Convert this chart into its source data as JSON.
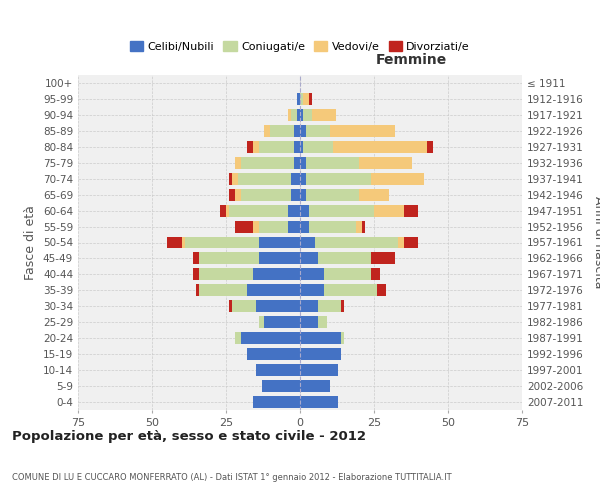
{
  "age_groups": [
    "100+",
    "95-99",
    "90-94",
    "85-89",
    "80-84",
    "75-79",
    "70-74",
    "65-69",
    "60-64",
    "55-59",
    "50-54",
    "45-49",
    "40-44",
    "35-39",
    "30-34",
    "25-29",
    "20-24",
    "15-19",
    "10-14",
    "5-9",
    "0-4"
  ],
  "birth_years": [
    "≤ 1911",
    "1912-1916",
    "1917-1921",
    "1922-1926",
    "1927-1931",
    "1932-1936",
    "1937-1941",
    "1942-1946",
    "1947-1951",
    "1952-1956",
    "1957-1961",
    "1962-1966",
    "1967-1971",
    "1972-1976",
    "1977-1981",
    "1982-1986",
    "1987-1991",
    "1992-1996",
    "1997-2001",
    "2002-2006",
    "2007-2011"
  ],
  "male": {
    "celibi": [
      0,
      1,
      1,
      2,
      2,
      2,
      3,
      3,
      4,
      4,
      14,
      14,
      16,
      18,
      15,
      12,
      20,
      18,
      15,
      13,
      16
    ],
    "coniugati": [
      0,
      0,
      2,
      8,
      12,
      18,
      18,
      17,
      20,
      10,
      25,
      20,
      18,
      16,
      8,
      2,
      2,
      0,
      0,
      0,
      0
    ],
    "vedovi": [
      0,
      0,
      1,
      2,
      2,
      2,
      2,
      2,
      1,
      2,
      1,
      0,
      0,
      0,
      0,
      0,
      0,
      0,
      0,
      0,
      0
    ],
    "divorziati": [
      0,
      0,
      0,
      0,
      2,
      0,
      1,
      2,
      2,
      6,
      5,
      2,
      2,
      1,
      1,
      0,
      0,
      0,
      0,
      0,
      0
    ]
  },
  "female": {
    "nubili": [
      0,
      0,
      1,
      2,
      1,
      2,
      2,
      2,
      3,
      3,
      5,
      6,
      8,
      8,
      6,
      6,
      14,
      14,
      13,
      10,
      13
    ],
    "coniugate": [
      0,
      1,
      3,
      8,
      10,
      18,
      22,
      18,
      22,
      16,
      28,
      18,
      16,
      18,
      8,
      3,
      1,
      0,
      0,
      0,
      0
    ],
    "vedove": [
      0,
      2,
      8,
      22,
      32,
      18,
      18,
      10,
      10,
      2,
      2,
      0,
      0,
      0,
      0,
      0,
      0,
      0,
      0,
      0,
      0
    ],
    "divorziate": [
      0,
      1,
      0,
      0,
      2,
      0,
      0,
      0,
      5,
      1,
      5,
      8,
      3,
      3,
      1,
      0,
      0,
      0,
      0,
      0,
      0
    ]
  },
  "colors": {
    "celibi": "#4472C4",
    "coniugati": "#c5d9a0",
    "vedovi": "#f5c97a",
    "divorziati": "#c0241e"
  },
  "xlim": 75,
  "title": "Popolazione per età, sesso e stato civile - 2012",
  "subtitle": "COMUNE DI LU E CUCCARO MONFERRATO (AL) - Dati ISTAT 1° gennaio 2012 - Elaborazione TUTTITALIA.IT",
  "ylabel_left": "Fasce di età",
  "ylabel_right": "Anni di nascita",
  "xlabel_femmine": "Femmine",
  "legend_labels": [
    "Celibi/Nubili",
    "Coniugati/e",
    "Vedovi/e",
    "Divorziati/e"
  ],
  "background_color": "#ffffff",
  "plot_bg_color": "#f0f0f0",
  "grid_color": "#cccccc"
}
